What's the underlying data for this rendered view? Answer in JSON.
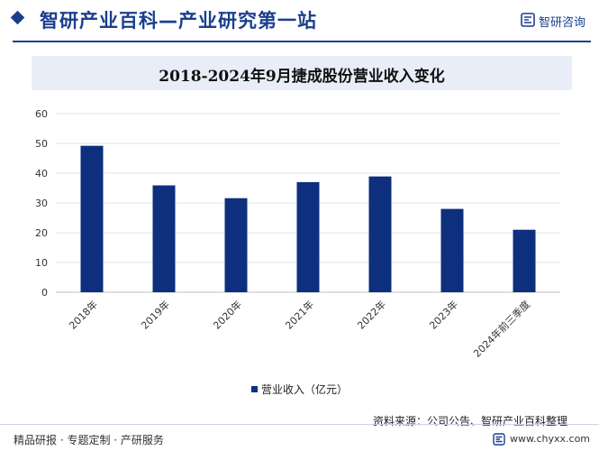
{
  "header": {
    "site_title": "智研产业百科—产业研究第一站",
    "brand_name": "智研咨询",
    "brand_logo_icon": "zhiyan-logo-icon"
  },
  "footer": {
    "left_text": "精品研报 · 专题定制 · 产研服务",
    "right_text": "www.chyxx.com",
    "source_text": "资料来源：公司公告、智研产业百科整理"
  },
  "colors": {
    "brand": "#1b3f8f",
    "bar": "#0d2f7e",
    "title_band": "#e8edf7"
  },
  "chart_data": {
    "type": "bar",
    "title": "2018-2024年9月捷成股份营业收入变化",
    "categories": [
      "2018年",
      "2019年",
      "2020年",
      "2021年",
      "2022年",
      "2023年",
      "2024年前三季度"
    ],
    "series": [
      {
        "name": "营业收入（亿元）",
        "values": [
          49.2,
          35.9,
          31.6,
          37.0,
          38.9,
          28.0,
          21.0
        ]
      }
    ],
    "ylim": [
      0,
      60
    ],
    "yticks": [
      0,
      10,
      20,
      30,
      40,
      50,
      60
    ],
    "grid": true,
    "legend": "bottom"
  }
}
